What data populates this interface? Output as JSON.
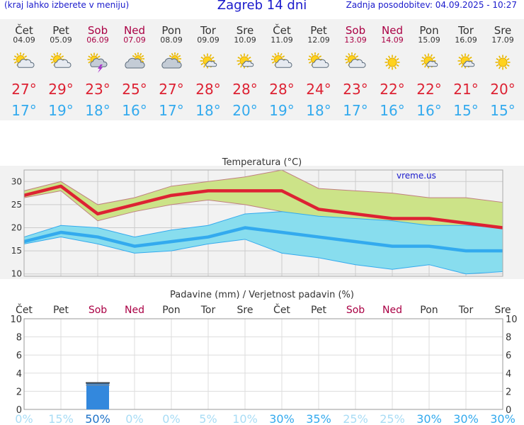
{
  "header": {
    "left_text": "(kraj lahko izberete v meniju)",
    "title": "Zagreb 14 dni",
    "right_text": "Zadnja posodobitev: 04.09.2025 - 10:27"
  },
  "days": [
    {
      "name": "Čet",
      "date": "04.09",
      "weekend": false,
      "icon": "sun-cloud-icon",
      "max": "27°",
      "min": "17°"
    },
    {
      "name": "Pet",
      "date": "05.09",
      "weekend": false,
      "icon": "sun-cloud-icon",
      "max": "29°",
      "min": "19°"
    },
    {
      "name": "Sob",
      "date": "06.09",
      "weekend": true,
      "icon": "storm-icon",
      "max": "23°",
      "min": "18°"
    },
    {
      "name": "Ned",
      "date": "07.09",
      "weekend": true,
      "icon": "cloudy-icon",
      "max": "25°",
      "min": "16°"
    },
    {
      "name": "Pon",
      "date": "08.09",
      "weekend": false,
      "icon": "cloudy-icon",
      "max": "27°",
      "min": "17°"
    },
    {
      "name": "Tor",
      "date": "09.09",
      "weekend": false,
      "icon": "sun-small-cloud-icon",
      "max": "28°",
      "min": "18°"
    },
    {
      "name": "Sre",
      "date": "10.09",
      "weekend": false,
      "icon": "sun-small-cloud-icon",
      "max": "28°",
      "min": "20°"
    },
    {
      "name": "Čet",
      "date": "11.09",
      "weekend": false,
      "icon": "sun-cloud-icon",
      "max": "28°",
      "min": "19°"
    },
    {
      "name": "Pet",
      "date": "12.09",
      "weekend": false,
      "icon": "sun-cloud-icon",
      "max": "24°",
      "min": "18°"
    },
    {
      "name": "Sob",
      "date": "13.09",
      "weekend": true,
      "icon": "sun-cloud-icon",
      "max": "23°",
      "min": "17°"
    },
    {
      "name": "Ned",
      "date": "14.09",
      "weekend": true,
      "icon": "sun-icon",
      "max": "22°",
      "min": "16°"
    },
    {
      "name": "Pon",
      "date": "15.09",
      "weekend": false,
      "icon": "sun-small-cloud-icon",
      "max": "22°",
      "min": "16°"
    },
    {
      "name": "Tor",
      "date": "16.09",
      "weekend": false,
      "icon": "sun-small-cloud-icon",
      "max": "21°",
      "min": "15°"
    },
    {
      "name": "Sre",
      "date": "17.09",
      "weekend": false,
      "icon": "sun-icon",
      "max": "20°",
      "min": "15°"
    }
  ],
  "colors": {
    "weekday": "#333333",
    "weekend": "#aa0044",
    "max_temp": "#dd2233",
    "min_temp": "#33aaee",
    "max_line": "#dd2233",
    "min_line": "#33aaee",
    "max_band": "#cce388",
    "min_band": "#88ddee",
    "overlap_band": "#77cc88",
    "precip_bar": "#3388dd"
  },
  "chart_data": [
    {
      "type": "line",
      "title": "Temperatura (°C)",
      "watermark": "vreme.us",
      "ylim": [
        9.5,
        32.5
      ],
      "yticks": [
        10,
        15,
        20,
        25,
        30
      ],
      "grid": true,
      "categories": [
        "04.09",
        "05.09",
        "06.09",
        "07.09",
        "08.09",
        "09.09",
        "10.09",
        "11.09",
        "12.09",
        "13.09",
        "14.09",
        "15.09",
        "16.09",
        "17.09"
      ],
      "series": [
        {
          "values": [
            27,
            29,
            23,
            25,
            27,
            28,
            28,
            28,
            24,
            23,
            22,
            22,
            21,
            20
          ]
        },
        {
          "values": [
            17,
            19,
            18,
            16,
            17,
            18,
            20,
            19,
            18,
            17,
            16,
            16,
            15,
            15
          ]
        }
      ],
      "max_range": {
        "upper": [
          28,
          30,
          25,
          26.5,
          29,
          30,
          31,
          32.5,
          28.5,
          28,
          27.5,
          26.5,
          26.5,
          25.5
        ],
        "lower": [
          26.5,
          28,
          21.5,
          23.5,
          25,
          26,
          25,
          23.5,
          22,
          19,
          17,
          18,
          16,
          15.5
        ]
      },
      "min_range": {
        "upper": [
          18,
          20.5,
          20,
          18,
          19.5,
          20.5,
          23,
          23.5,
          22.5,
          22,
          21.5,
          20.5,
          20.5,
          20
        ],
        "lower": [
          16.5,
          18,
          16.5,
          14.5,
          15,
          16.5,
          17.5,
          14.5,
          13.5,
          12,
          11,
          12,
          10,
          10.5
        ]
      }
    },
    {
      "type": "bar",
      "title": "Padavine (mm) / Verjetnost padavin (%)",
      "ylim": [
        0,
        10
      ],
      "yticks": [
        0,
        2,
        4,
        6,
        8,
        10
      ],
      "grid": true,
      "categories": [
        "Čet",
        "Pet",
        "Sob",
        "Ned",
        "Pon",
        "Tor",
        "Sre",
        "Čet",
        "Pet",
        "Sob",
        "Ned",
        "Pon",
        "Tor",
        "Sre"
      ],
      "values": [
        0,
        0,
        3.0,
        0,
        0,
        0,
        0,
        0,
        0,
        0,
        0,
        0,
        0,
        0
      ],
      "probabilities": [
        "0%",
        "15%",
        "50%",
        "0%",
        "0%",
        "5%",
        "10%",
        "30%",
        "35%",
        "25%",
        "25%",
        "30%",
        "30%",
        "30%"
      ]
    }
  ]
}
